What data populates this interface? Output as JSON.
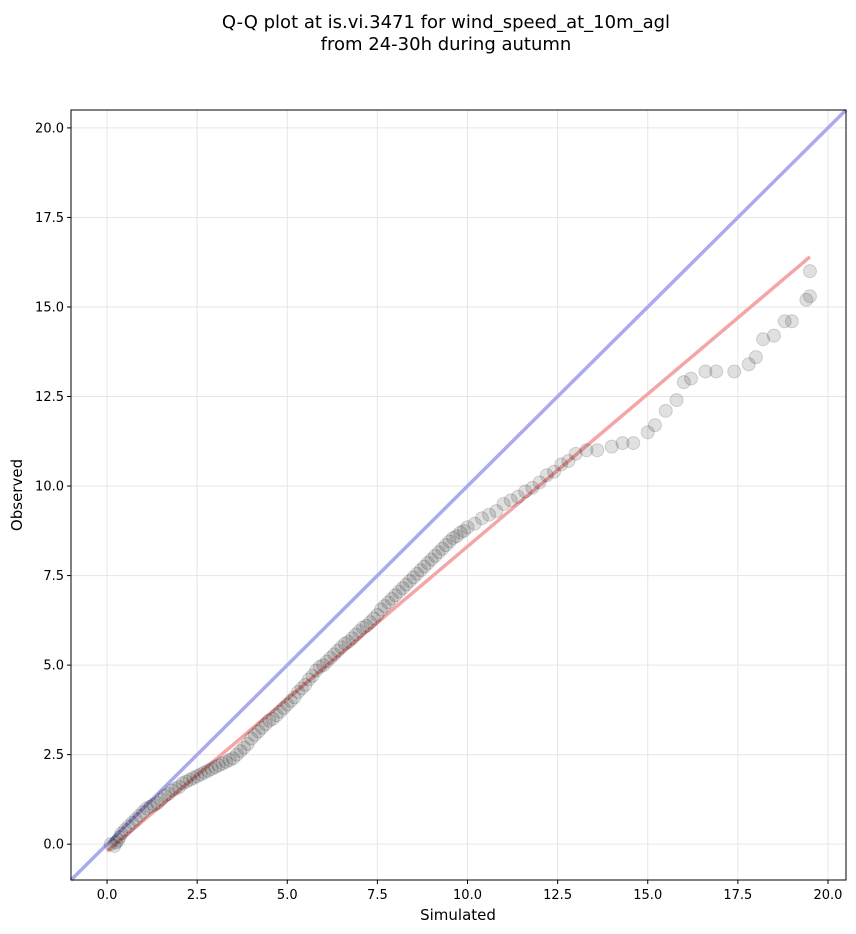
{
  "chart_data": {
    "type": "scatter",
    "title_lines": [
      "Q-Q plot at is.vi.3471 for wind_speed_at_10m_agl",
      "from 24-30h during autumn"
    ],
    "xlabel": "Simulated",
    "ylabel": "Observed",
    "xlim": [
      -1.0,
      20.5
    ],
    "ylim": [
      -1.0,
      20.5
    ],
    "xticks": [
      0.0,
      2.5,
      5.0,
      7.5,
      10.0,
      12.5,
      15.0,
      17.5,
      20.0
    ],
    "yticks": [
      0.0,
      2.5,
      5.0,
      7.5,
      10.0,
      12.5,
      15.0,
      17.5,
      20.0
    ],
    "xtick_labels": [
      "0.0",
      "2.5",
      "5.0",
      "7.5",
      "10.0",
      "12.5",
      "15.0",
      "17.5",
      "20.0"
    ],
    "ytick_labels": [
      "0.0",
      "2.5",
      "5.0",
      "7.5",
      "10.0",
      "12.5",
      "15.0",
      "17.5",
      "20.0"
    ],
    "grid": true,
    "identity_line": {
      "x": [
        -1.0,
        20.5
      ],
      "y": [
        -1.0,
        20.5
      ],
      "color": "#aaaaf0"
    },
    "fit_line": {
      "x": [
        0.0,
        19.5
      ],
      "y": [
        -0.2,
        16.4
      ],
      "color": "#f4a6a6"
    },
    "series": [
      {
        "color": "#000000",
        "points": [
          [
            0.1,
            0.0
          ],
          [
            0.2,
            -0.05
          ],
          [
            0.25,
            0.05
          ],
          [
            0.3,
            0.1
          ],
          [
            0.35,
            0.2
          ],
          [
            0.4,
            0.3
          ],
          [
            0.5,
            0.4
          ],
          [
            0.6,
            0.5
          ],
          [
            0.7,
            0.6
          ],
          [
            0.8,
            0.7
          ],
          [
            0.9,
            0.8
          ],
          [
            1.0,
            0.9
          ],
          [
            1.1,
            1.0
          ],
          [
            1.2,
            1.05
          ],
          [
            1.3,
            1.1
          ],
          [
            1.4,
            1.15
          ],
          [
            1.5,
            1.25
          ],
          [
            1.6,
            1.35
          ],
          [
            1.7,
            1.4
          ],
          [
            1.8,
            1.5
          ],
          [
            1.9,
            1.55
          ],
          [
            2.0,
            1.6
          ],
          [
            2.1,
            1.7
          ],
          [
            2.2,
            1.75
          ],
          [
            2.3,
            1.8
          ],
          [
            2.4,
            1.85
          ],
          [
            2.5,
            1.9
          ],
          [
            2.6,
            1.95
          ],
          [
            2.7,
            2.0
          ],
          [
            2.8,
            2.05
          ],
          [
            2.9,
            2.1
          ],
          [
            3.0,
            2.15
          ],
          [
            3.1,
            2.2
          ],
          [
            3.2,
            2.25
          ],
          [
            3.3,
            2.3
          ],
          [
            3.4,
            2.35
          ],
          [
            3.5,
            2.4
          ],
          [
            3.6,
            2.5
          ],
          [
            3.7,
            2.6
          ],
          [
            3.8,
            2.7
          ],
          [
            3.9,
            2.8
          ],
          [
            4.0,
            2.95
          ],
          [
            4.1,
            3.05
          ],
          [
            4.2,
            3.15
          ],
          [
            4.3,
            3.25
          ],
          [
            4.4,
            3.35
          ],
          [
            4.5,
            3.45
          ],
          [
            4.6,
            3.5
          ],
          [
            4.7,
            3.6
          ],
          [
            4.8,
            3.7
          ],
          [
            4.9,
            3.8
          ],
          [
            5.0,
            3.9
          ],
          [
            5.1,
            4.0
          ],
          [
            5.2,
            4.1
          ],
          [
            5.3,
            4.25
          ],
          [
            5.4,
            4.35
          ],
          [
            5.5,
            4.45
          ],
          [
            5.6,
            4.6
          ],
          [
            5.7,
            4.7
          ],
          [
            5.8,
            4.85
          ],
          [
            5.9,
            4.95
          ],
          [
            6.0,
            5.0
          ],
          [
            6.1,
            5.1
          ],
          [
            6.2,
            5.2
          ],
          [
            6.3,
            5.3
          ],
          [
            6.4,
            5.4
          ],
          [
            6.5,
            5.5
          ],
          [
            6.6,
            5.6
          ],
          [
            6.7,
            5.65
          ],
          [
            6.8,
            5.75
          ],
          [
            6.9,
            5.85
          ],
          [
            7.0,
            5.95
          ],
          [
            7.1,
            6.05
          ],
          [
            7.2,
            6.1
          ],
          [
            7.3,
            6.2
          ],
          [
            7.4,
            6.3
          ],
          [
            7.5,
            6.4
          ],
          [
            7.6,
            6.55
          ],
          [
            7.7,
            6.65
          ],
          [
            7.8,
            6.75
          ],
          [
            7.9,
            6.85
          ],
          [
            8.0,
            6.95
          ],
          [
            8.1,
            7.05
          ],
          [
            8.2,
            7.15
          ],
          [
            8.3,
            7.25
          ],
          [
            8.4,
            7.35
          ],
          [
            8.5,
            7.45
          ],
          [
            8.6,
            7.55
          ],
          [
            8.7,
            7.65
          ],
          [
            8.8,
            7.75
          ],
          [
            8.9,
            7.85
          ],
          [
            9.0,
            7.95
          ],
          [
            9.1,
            8.05
          ],
          [
            9.2,
            8.15
          ],
          [
            9.3,
            8.25
          ],
          [
            9.4,
            8.35
          ],
          [
            9.5,
            8.45
          ],
          [
            9.6,
            8.55
          ],
          [
            9.7,
            8.6
          ],
          [
            9.8,
            8.7
          ],
          [
            9.9,
            8.75
          ],
          [
            10.0,
            8.85
          ],
          [
            10.2,
            8.95
          ],
          [
            10.4,
            9.1
          ],
          [
            10.6,
            9.2
          ],
          [
            10.8,
            9.3
          ],
          [
            11.0,
            9.5
          ],
          [
            11.2,
            9.6
          ],
          [
            11.4,
            9.7
          ],
          [
            11.6,
            9.85
          ],
          [
            11.8,
            9.95
          ],
          [
            12.0,
            10.1
          ],
          [
            12.2,
            10.3
          ],
          [
            12.4,
            10.4
          ],
          [
            12.6,
            10.6
          ],
          [
            12.8,
            10.7
          ],
          [
            13.0,
            10.9
          ],
          [
            13.3,
            11.0
          ],
          [
            13.6,
            11.0
          ],
          [
            14.0,
            11.1
          ],
          [
            14.3,
            11.2
          ],
          [
            14.6,
            11.2
          ],
          [
            15.0,
            11.5
          ],
          [
            15.2,
            11.7
          ],
          [
            15.5,
            12.1
          ],
          [
            15.8,
            12.4
          ],
          [
            16.0,
            12.9
          ],
          [
            16.2,
            13.0
          ],
          [
            16.6,
            13.2
          ],
          [
            16.9,
            13.2
          ],
          [
            17.4,
            13.2
          ],
          [
            17.8,
            13.4
          ],
          [
            18.0,
            13.6
          ],
          [
            18.2,
            14.1
          ],
          [
            18.5,
            14.2
          ],
          [
            18.8,
            14.6
          ],
          [
            19.0,
            14.6
          ],
          [
            19.4,
            15.2
          ],
          [
            19.5,
            15.3
          ],
          [
            19.5,
            16.0
          ]
        ]
      }
    ]
  }
}
